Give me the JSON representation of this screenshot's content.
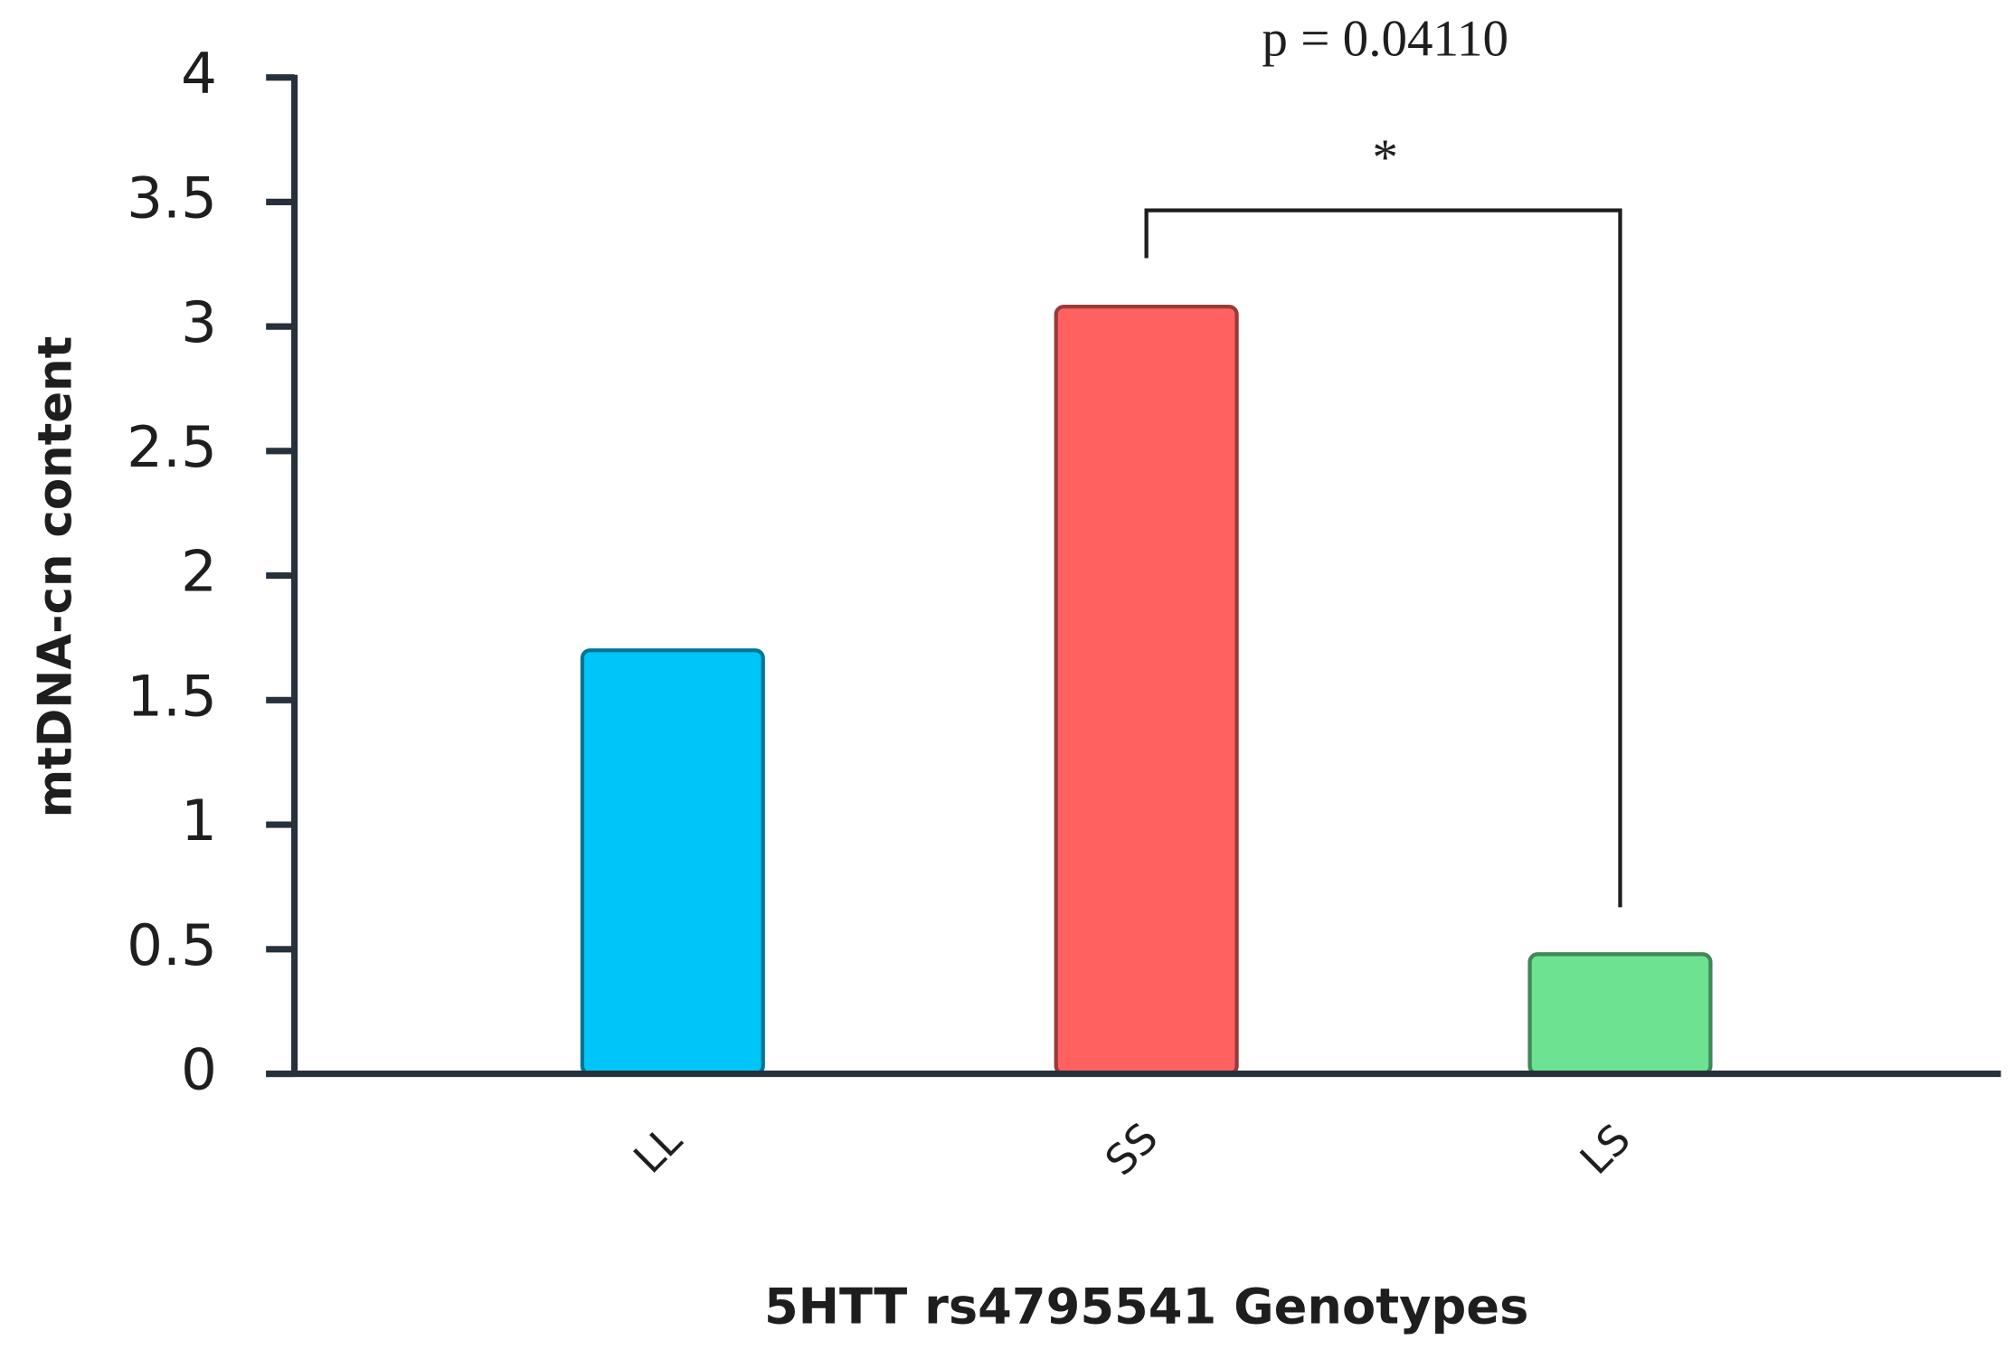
{
  "chart_data": {
    "type": "bar",
    "categories": [
      "LL",
      "SS",
      "LS"
    ],
    "values": [
      1.7,
      3.08,
      0.48
    ],
    "colors": [
      "#00c5f7",
      "#ff6161",
      "#6de391"
    ],
    "x_label": "5HTT rs4795541 Genotypes",
    "y_label": "mtDNA-cn content",
    "ylim": [
      0,
      4
    ],
    "yticks": [
      0,
      0.5,
      1,
      1.5,
      2,
      2.5,
      3,
      3.5,
      4
    ],
    "grid": false,
    "annotations": [
      {
        "text": "p = 0.04110"
      },
      {
        "text": "*"
      }
    ]
  }
}
